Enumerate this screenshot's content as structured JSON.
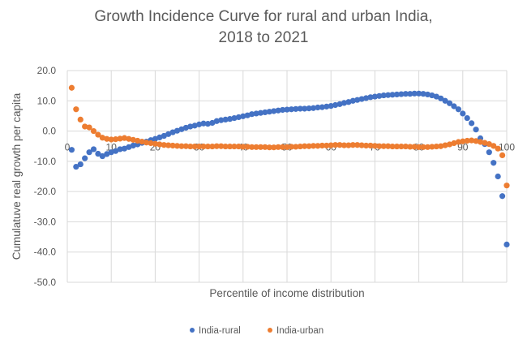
{
  "chart_data": {
    "type": "scatter",
    "title_lines": [
      "Growth Incidence Curve for rural and urban India,",
      "2018 to 2021"
    ],
    "xlabel": "Percentile of income distribution",
    "ylabel": "Cumulatuve real growth per capita",
    "xlim": [
      0,
      100
    ],
    "ylim": [
      -50,
      20
    ],
    "x_ticks": [
      0,
      10,
      20,
      30,
      40,
      50,
      60,
      70,
      80,
      90,
      100
    ],
    "x_tick_labels": [
      "0",
      "10",
      "20",
      "30",
      "40",
      "50",
      "60",
      "70",
      "80",
      "90",
      "100"
    ],
    "y_ticks": [
      20,
      10,
      0,
      -10,
      -20,
      -30,
      -40,
      -50
    ],
    "y_tick_labels": [
      "20.0",
      "10.0",
      "0.0",
      "-10.0",
      "-20.0",
      "-30.0",
      "-40.0",
      "-50.0"
    ],
    "grid": true,
    "legend_position": "bottom",
    "x": [
      1,
      2,
      3,
      4,
      5,
      6,
      7,
      8,
      9,
      10,
      11,
      12,
      13,
      14,
      15,
      16,
      17,
      18,
      19,
      20,
      21,
      22,
      23,
      24,
      25,
      26,
      27,
      28,
      29,
      30,
      31,
      32,
      33,
      34,
      35,
      36,
      37,
      38,
      39,
      40,
      41,
      42,
      43,
      44,
      45,
      46,
      47,
      48,
      49,
      50,
      51,
      52,
      53,
      54,
      55,
      56,
      57,
      58,
      59,
      60,
      61,
      62,
      63,
      64,
      65,
      66,
      67,
      68,
      69,
      70,
      71,
      72,
      73,
      74,
      75,
      76,
      77,
      78,
      79,
      80,
      81,
      82,
      83,
      84,
      85,
      86,
      87,
      88,
      89,
      90,
      91,
      92,
      93,
      94,
      95,
      96,
      97,
      98,
      99,
      100
    ],
    "series": [
      {
        "name": "India-rural",
        "color": "#4472C4",
        "values": [
          -6.2,
          -11.8,
          -11.0,
          -9.0,
          -7.0,
          -6.0,
          -7.5,
          -8.3,
          -7.6,
          -7.0,
          -6.6,
          -6.0,
          -5.8,
          -5.3,
          -4.8,
          -4.4,
          -3.9,
          -3.5,
          -3.0,
          -2.6,
          -2.1,
          -1.6,
          -1.0,
          -0.4,
          0.1,
          0.6,
          1.1,
          1.5,
          1.8,
          2.2,
          2.5,
          2.4,
          2.7,
          3.3,
          3.6,
          3.8,
          4.0,
          4.3,
          4.6,
          4.9,
          5.2,
          5.6,
          5.8,
          6.0,
          6.2,
          6.4,
          6.6,
          6.8,
          7.0,
          7.1,
          7.2,
          7.3,
          7.4,
          7.4,
          7.5,
          7.6,
          7.8,
          7.9,
          8.1,
          8.3,
          8.6,
          8.9,
          9.3,
          9.6,
          10.0,
          10.3,
          10.6,
          10.9,
          11.2,
          11.4,
          11.6,
          11.8,
          11.9,
          12.0,
          12.1,
          12.2,
          12.3,
          12.3,
          12.4,
          12.4,
          12.3,
          12.1,
          11.8,
          11.4,
          10.8,
          10.0,
          9.2,
          8.2,
          7.2,
          5.8,
          4.3,
          2.6,
          0.5,
          -2.4,
          -4.3,
          -7.0,
          -10.5,
          -15.0,
          -21.5,
          -37.5
        ]
      },
      {
        "name": "India-urban",
        "color": "#ED7D31",
        "values": [
          14.3,
          7.2,
          3.8,
          1.5,
          1.2,
          0.0,
          -1.2,
          -2.2,
          -2.6,
          -2.8,
          -2.7,
          -2.5,
          -2.3,
          -2.6,
          -2.9,
          -3.2,
          -3.5,
          -3.8,
          -4.0,
          -4.2,
          -4.4,
          -4.6,
          -4.7,
          -4.8,
          -4.9,
          -5.0,
          -5.0,
          -5.1,
          -5.1,
          -5.1,
          -5.1,
          -5.1,
          -5.1,
          -5.0,
          -5.0,
          -5.1,
          -5.1,
          -5.1,
          -5.1,
          -5.2,
          -5.2,
          -5.3,
          -5.3,
          -5.3,
          -5.3,
          -5.4,
          -5.4,
          -5.3,
          -5.3,
          -5.3,
          -5.2,
          -5.2,
          -5.1,
          -5.0,
          -5.0,
          -4.9,
          -4.9,
          -4.8,
          -4.8,
          -4.7,
          -4.6,
          -4.6,
          -4.7,
          -4.7,
          -4.6,
          -4.6,
          -4.7,
          -4.8,
          -4.8,
          -4.9,
          -5.0,
          -5.0,
          -5.0,
          -5.1,
          -5.1,
          -5.1,
          -5.1,
          -5.2,
          -5.2,
          -5.3,
          -5.3,
          -5.3,
          -5.2,
          -5.1,
          -5.0,
          -4.7,
          -4.4,
          -4.0,
          -3.6,
          -3.4,
          -3.2,
          -3.1,
          -3.3,
          -3.6,
          -3.9,
          -4.3,
          -4.9,
          -5.8,
          -8.0,
          -18.0
        ]
      }
    ]
  }
}
